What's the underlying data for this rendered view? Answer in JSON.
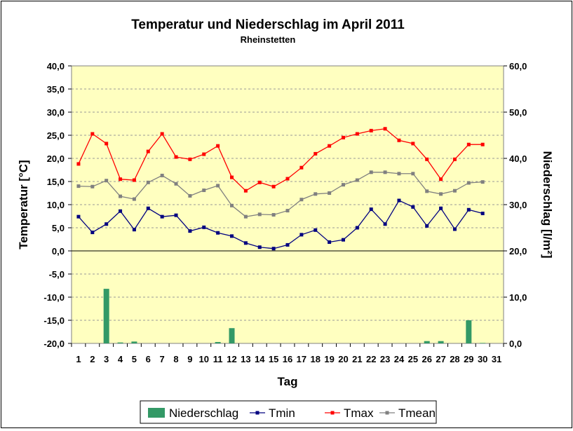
{
  "chart_data": {
    "type": "line",
    "title": "Temperatur und Niederschlag im April 2011",
    "subtitle": "Rheinstetten",
    "xlabel": "Tag",
    "ylabel_left": "Temperatur [°C]",
    "ylabel_right": "Niederschlag [l/m²]",
    "categories": [
      "1",
      "2",
      "3",
      "4",
      "5",
      "6",
      "7",
      "8",
      "9",
      "10",
      "11",
      "12",
      "13",
      "14",
      "15",
      "16",
      "17",
      "18",
      "19",
      "20",
      "21",
      "22",
      "23",
      "24",
      "25",
      "26",
      "27",
      "28",
      "29",
      "30",
      "31"
    ],
    "ylim_left": [
      -20,
      40
    ],
    "ylim_right": [
      0,
      60
    ],
    "yticks_left": [
      "40,0",
      "35,0",
      "30,0",
      "25,0",
      "20,0",
      "15,0",
      "10,0",
      "5,0",
      "0,0",
      "-5,0",
      "-10,0",
      "-15,0",
      "-20,0"
    ],
    "yticks_right": [
      "60,0",
      "50,0",
      "40,0",
      "30,0",
      "20,0",
      "10,0",
      "0,0"
    ],
    "grid": true,
    "legend_position": "bottom",
    "series": [
      {
        "name": "Niederschlag",
        "kind": "bar",
        "axis": "right",
        "color": "#339966",
        "values": [
          0,
          0,
          11.8,
          0.2,
          0.4,
          0,
          0,
          0,
          0,
          0,
          0.3,
          3.3,
          0,
          0,
          0,
          0,
          0,
          0,
          0,
          0,
          0,
          0,
          0,
          0,
          0,
          0.5,
          0.5,
          0,
          5.0,
          0.1,
          0
        ]
      },
      {
        "name": "Tmin",
        "kind": "line",
        "axis": "left",
        "color": "#000080",
        "values": [
          7.4,
          4.0,
          5.8,
          8.6,
          4.6,
          9.2,
          7.4,
          7.7,
          4.3,
          5.1,
          3.9,
          3.2,
          1.7,
          0.8,
          0.5,
          1.3,
          3.5,
          4.5,
          1.9,
          2.4,
          5.0,
          9.0,
          5.8,
          10.9,
          9.5,
          5.4,
          9.2,
          4.7,
          8.9,
          8.1,
          null
        ]
      },
      {
        "name": "Tmax",
        "kind": "line",
        "axis": "left",
        "color": "#ff0000",
        "values": [
          18.8,
          25.3,
          23.2,
          15.5,
          15.3,
          21.5,
          25.3,
          20.3,
          19.8,
          20.9,
          22.7,
          15.9,
          13.0,
          14.8,
          13.9,
          15.6,
          18.0,
          21.0,
          22.7,
          24.5,
          25.3,
          26.0,
          26.4,
          23.9,
          23.2,
          19.8,
          15.5,
          19.8,
          23.0,
          23.0,
          null
        ]
      },
      {
        "name": "Tmean",
        "kind": "line",
        "axis": "left",
        "color": "#808080",
        "values": [
          14.0,
          13.9,
          15.2,
          11.8,
          11.2,
          14.8,
          16.3,
          14.5,
          11.9,
          13.1,
          14.1,
          9.8,
          7.4,
          7.9,
          7.8,
          8.7,
          11.1,
          12.3,
          12.5,
          14.3,
          15.3,
          17.0,
          17.0,
          16.7,
          16.7,
          12.9,
          12.3,
          13.0,
          14.7,
          14.9,
          null
        ]
      }
    ]
  }
}
